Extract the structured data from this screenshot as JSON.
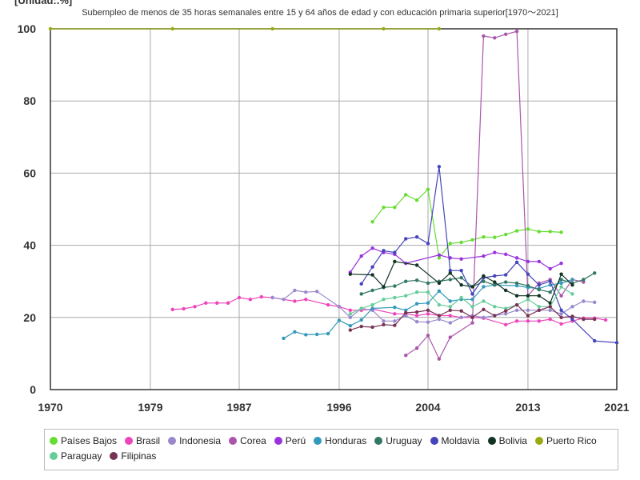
{
  "unit_label": "[Unidad:.%]",
  "chart_data": {
    "type": "line",
    "title": "Subempleo de menos de 35 horas semanales entre 15 y 64 años de edad y con educación primaria superior[1970〜2021]",
    "xlabel": "",
    "ylabel": "",
    "xlim": [
      1970,
      2021
    ],
    "ylim": [
      0,
      100
    ],
    "x_ticks": [
      1970,
      1979,
      1987,
      1996,
      2004,
      2013,
      2021
    ],
    "y_ticks": [
      0,
      20,
      40,
      60,
      80,
      100
    ],
    "grid": true,
    "legend_position": "bottom",
    "series": [
      {
        "name": "Países Bajos",
        "color": "#66dd33",
        "points": [
          [
            1999,
            46.5
          ],
          [
            2000,
            50.5
          ],
          [
            2001,
            50.5
          ],
          [
            2002,
            54
          ],
          [
            2003,
            52.5
          ],
          [
            2004,
            55.5
          ],
          [
            2005,
            36.5
          ],
          [
            2006,
            40.5
          ],
          [
            2007,
            40.8
          ],
          [
            2008,
            41.5
          ],
          [
            2009,
            42.3
          ],
          [
            2010,
            42.2
          ],
          [
            2011,
            43
          ],
          [
            2012,
            44
          ],
          [
            2013,
            44.5
          ],
          [
            2014,
            43.8
          ],
          [
            2015,
            43.8
          ],
          [
            2016,
            43.6
          ]
        ]
      },
      {
        "name": "Brasil",
        "color": "#ee44bb",
        "points": [
          [
            1981,
            22.2
          ],
          [
            1982,
            22.4
          ],
          [
            1983,
            23
          ],
          [
            1984,
            24
          ],
          [
            1985,
            24
          ],
          [
            1986,
            24
          ],
          [
            1987,
            25.5
          ],
          [
            1988,
            25
          ],
          [
            1989,
            25.7
          ],
          [
            1990,
            25.5
          ],
          [
            1992,
            24.5
          ],
          [
            1993,
            25
          ],
          [
            1995,
            23.5
          ],
          [
            1996,
            23
          ],
          [
            1997,
            22
          ],
          [
            1998,
            22
          ],
          [
            1999,
            22.3
          ],
          [
            2001,
            21
          ],
          [
            2002,
            21
          ],
          [
            2003,
            20.5
          ],
          [
            2004,
            21
          ],
          [
            2005,
            20.5
          ],
          [
            2006,
            20.5
          ],
          [
            2007,
            20
          ],
          [
            2008,
            20
          ],
          [
            2009,
            19.8
          ],
          [
            2011,
            18
          ],
          [
            2012,
            19
          ],
          [
            2013,
            19
          ],
          [
            2014,
            19
          ],
          [
            2015,
            19.5
          ],
          [
            2016,
            18.2
          ],
          [
            2017,
            19
          ],
          [
            2018,
            19.8
          ],
          [
            2019,
            19.8
          ],
          [
            2020,
            19.3
          ]
        ]
      },
      {
        "name": "Indonesia",
        "color": "#9988cc",
        "points": [
          [
            1990,
            25.5
          ],
          [
            1991,
            25
          ],
          [
            1992,
            27.5
          ],
          [
            1993,
            27
          ],
          [
            1994,
            27.2
          ],
          [
            1996,
            23
          ],
          [
            1997,
            20
          ],
          [
            1998,
            22.5
          ],
          [
            1999,
            22
          ],
          [
            2000,
            19
          ],
          [
            2001,
            19
          ],
          [
            2002,
            20.5
          ],
          [
            2003,
            18.8
          ],
          [
            2004,
            18.7
          ],
          [
            2005,
            19.5
          ],
          [
            2006,
            18.5
          ],
          [
            2007,
            20
          ],
          [
            2008,
            20.5
          ],
          [
            2009,
            20
          ],
          [
            2010,
            20.5
          ],
          [
            2011,
            21
          ],
          [
            2012,
            22
          ],
          [
            2013,
            22
          ],
          [
            2014,
            22
          ],
          [
            2015,
            22
          ],
          [
            2016,
            21
          ],
          [
            2017,
            23
          ],
          [
            2018,
            24.5
          ],
          [
            2019,
            24.2
          ]
        ]
      },
      {
        "name": "Corea",
        "color": "#aa55aa",
        "points": [
          [
            2002,
            9.5
          ],
          [
            2003,
            11.5
          ],
          [
            2004,
            15
          ],
          [
            2005,
            8.5
          ],
          [
            2006,
            14.5
          ],
          [
            2008,
            18.5
          ],
          [
            2009,
            98
          ],
          [
            2010,
            97.5
          ],
          [
            2011,
            98.5
          ],
          [
            2012,
            99.3
          ],
          [
            2013,
            26
          ],
          [
            2014,
            29.5
          ],
          [
            2015,
            30.5
          ],
          [
            2016,
            26
          ],
          [
            2017,
            30.5
          ],
          [
            2018,
            29.8
          ]
        ]
      },
      {
        "name": "Perú",
        "color": "#9933dd",
        "points": [
          [
            1997,
            32.5
          ],
          [
            1998,
            37
          ],
          [
            1999,
            39.2
          ],
          [
            2000,
            38
          ],
          [
            2001,
            37.5
          ],
          [
            2002,
            35
          ],
          [
            2005,
            37.3
          ],
          [
            2006,
            36.5
          ],
          [
            2007,
            36.2
          ],
          [
            2009,
            37
          ],
          [
            2010,
            38
          ],
          [
            2011,
            37.5
          ],
          [
            2012,
            36.5
          ],
          [
            2013,
            35.5
          ],
          [
            2014,
            35.5
          ],
          [
            2015,
            33.5
          ],
          [
            2016,
            35
          ]
        ]
      },
      {
        "name": "Honduras",
        "color": "#3399bb",
        "points": [
          [
            1991,
            14.2
          ],
          [
            1992,
            16
          ],
          [
            1993,
            15.2
          ],
          [
            1994,
            15.3
          ],
          [
            1995,
            15.5
          ],
          [
            1996,
            19.2
          ],
          [
            1997,
            17.7
          ],
          [
            1998,
            19.3
          ],
          [
            1999,
            22.5
          ],
          [
            2001,
            22.8
          ],
          [
            2002,
            22
          ],
          [
            2003,
            23.8
          ],
          [
            2004,
            24
          ],
          [
            2005,
            27.3
          ],
          [
            2006,
            24.5
          ],
          [
            2007,
            25
          ],
          [
            2008,
            25
          ],
          [
            2009,
            28.5
          ],
          [
            2010,
            29
          ],
          [
            2012,
            28.8
          ],
          [
            2013,
            28.3
          ],
          [
            2014,
            28
          ],
          [
            2015,
            29
          ],
          [
            2016,
            29.5
          ],
          [
            2017,
            30.5
          ]
        ]
      },
      {
        "name": "Uruguay",
        "color": "#337766",
        "points": [
          [
            1998,
            26.5
          ],
          [
            1999,
            27.5
          ],
          [
            2000,
            28.3
          ],
          [
            2001,
            28.7
          ],
          [
            2002,
            30
          ],
          [
            2003,
            30.3
          ],
          [
            2004,
            29.5
          ],
          [
            2005,
            30
          ],
          [
            2006,
            30.5
          ],
          [
            2007,
            31
          ],
          [
            2008,
            28.5
          ],
          [
            2009,
            30
          ],
          [
            2010,
            29
          ],
          [
            2011,
            29.8
          ],
          [
            2012,
            29.5
          ],
          [
            2013,
            28.8
          ],
          [
            2014,
            27.7
          ],
          [
            2015,
            27
          ],
          [
            2016,
            30.5
          ],
          [
            2017,
            29.5
          ],
          [
            2018,
            30.5
          ],
          [
            2019,
            32.3
          ]
        ]
      },
      {
        "name": "Moldavia",
        "color": "#4444bb",
        "points": [
          [
            1998,
            29.3
          ],
          [
            1999,
            34
          ],
          [
            2000,
            38.5
          ],
          [
            2001,
            38
          ],
          [
            2002,
            41.8
          ],
          [
            2003,
            42.3
          ],
          [
            2004,
            40.5
          ],
          [
            2005,
            61.8
          ],
          [
            2006,
            33
          ],
          [
            2007,
            33
          ],
          [
            2008,
            26.5
          ],
          [
            2009,
            31
          ],
          [
            2010,
            31.5
          ],
          [
            2011,
            31.8
          ],
          [
            2012,
            35.3
          ],
          [
            2013,
            32
          ],
          [
            2014,
            29
          ],
          [
            2015,
            30
          ],
          [
            2016,
            22
          ],
          [
            2017,
            19.5
          ],
          [
            2019,
            13.5
          ],
          [
            2021,
            13
          ]
        ]
      },
      {
        "name": "Bolivia",
        "color": "#113322",
        "points": [
          [
            1997,
            32
          ],
          [
            1999,
            31.8
          ],
          [
            2000,
            28.5
          ],
          [
            2001,
            35.5
          ],
          [
            2003,
            34.5
          ],
          [
            2005,
            29.5
          ],
          [
            2006,
            32.3
          ],
          [
            2007,
            29
          ],
          [
            2008,
            28.5
          ],
          [
            2009,
            31.5
          ],
          [
            2010,
            29.8
          ],
          [
            2011,
            27.5
          ],
          [
            2012,
            26
          ],
          [
            2013,
            26
          ],
          [
            2014,
            26
          ],
          [
            2015,
            24
          ],
          [
            2016,
            32
          ],
          [
            2017,
            29
          ]
        ]
      },
      {
        "name": "Puerto Rico",
        "color": "#99aa11",
        "points": [
          [
            1970,
            100
          ],
          [
            1981,
            100
          ],
          [
            1990,
            100
          ],
          [
            2000,
            100
          ],
          [
            2005,
            100
          ]
        ]
      },
      {
        "name": "Paraguay",
        "color": "#66cc99",
        "points": [
          [
            1997,
            21
          ],
          [
            1998,
            22.5
          ],
          [
            1999,
            23.5
          ],
          [
            2000,
            25
          ],
          [
            2001,
            25.5
          ],
          [
            2002,
            26
          ],
          [
            2003,
            27
          ],
          [
            2004,
            27
          ],
          [
            2005,
            23.5
          ],
          [
            2006,
            23
          ],
          [
            2007,
            25.5
          ],
          [
            2008,
            23
          ],
          [
            2009,
            24.5
          ],
          [
            2010,
            23
          ],
          [
            2011,
            22.5
          ],
          [
            2012,
            23.5
          ],
          [
            2013,
            25
          ],
          [
            2014,
            23
          ],
          [
            2015,
            23
          ],
          [
            2016,
            28.5
          ],
          [
            2017,
            26.5
          ]
        ]
      },
      {
        "name": "Filipinas",
        "color": "#773355",
        "points": [
          [
            1997,
            16.5
          ],
          [
            1998,
            17.5
          ],
          [
            1999,
            17.3
          ],
          [
            2000,
            18
          ],
          [
            2001,
            17.8
          ],
          [
            2002,
            21.3
          ],
          [
            2003,
            21.5
          ],
          [
            2004,
            22
          ],
          [
            2005,
            20.5
          ],
          [
            2006,
            22
          ],
          [
            2007,
            21.8
          ],
          [
            2008,
            20
          ],
          [
            2009,
            22.2
          ],
          [
            2010,
            20.5
          ],
          [
            2011,
            21.8
          ],
          [
            2012,
            23.5
          ],
          [
            2013,
            20.5
          ],
          [
            2014,
            22
          ],
          [
            2015,
            23
          ],
          [
            2016,
            20
          ],
          [
            2017,
            20.3
          ],
          [
            2018,
            19.5
          ],
          [
            2019,
            19.5
          ]
        ]
      }
    ]
  }
}
